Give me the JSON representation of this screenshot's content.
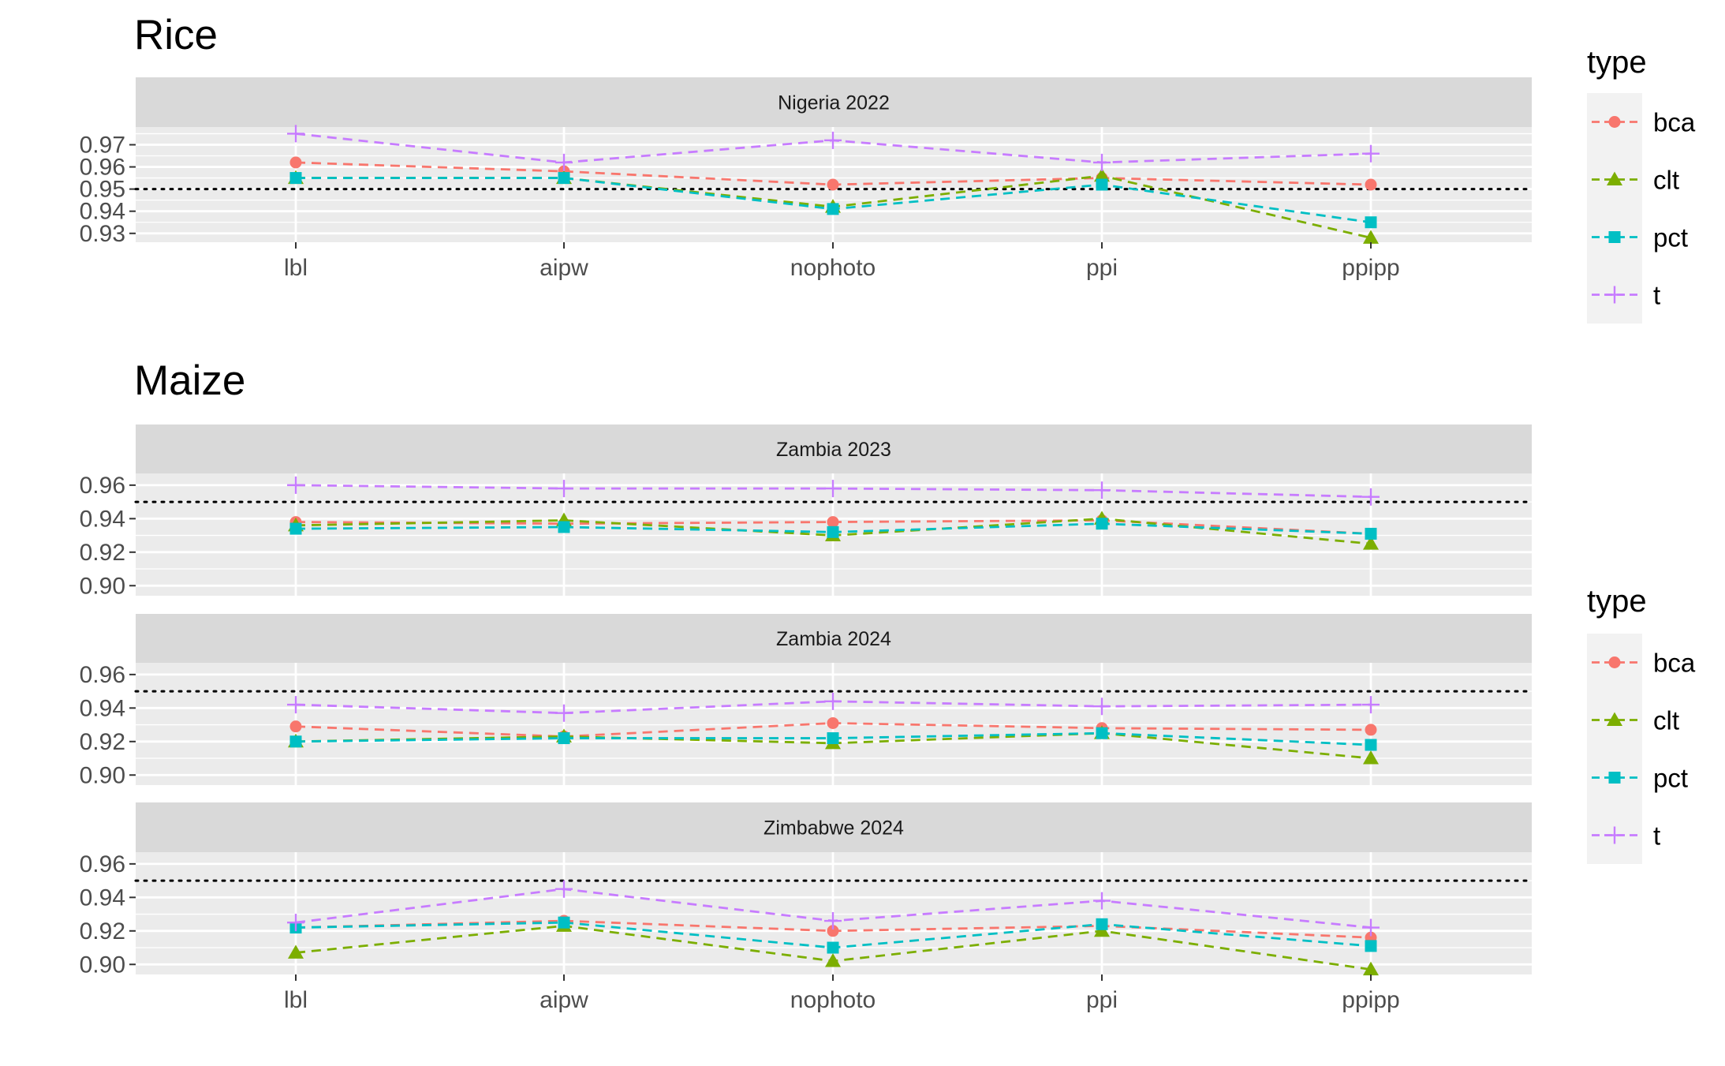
{
  "chart_data": [
    {
      "type": "line",
      "title": "Rice",
      "legend": {
        "title": "type",
        "placement": "right",
        "entries": [
          "bca",
          "clt",
          "pct",
          "t"
        ]
      },
      "facets": [
        {
          "label": "Nigeria 2022",
          "x": [
            "lbl",
            "aipw",
            "nophoto",
            "ppi",
            "ppipp"
          ],
          "ylim": [
            0.926,
            0.978
          ],
          "yticks": [
            "0.97",
            "0.96",
            "0.95",
            "0.94",
            "0.93"
          ],
          "yticks_values": [
            0.97,
            0.96,
            0.95,
            0.94,
            0.93
          ],
          "reference_line": 0.95,
          "series": [
            {
              "name": "bca",
              "values": [
                0.962,
                0.958,
                0.952,
                0.955,
                0.952
              ]
            },
            {
              "name": "clt",
              "values": [
                0.955,
                0.955,
                0.942,
                0.956,
                0.928
              ]
            },
            {
              "name": "pct",
              "values": [
                0.955,
                0.955,
                0.941,
                0.952,
                0.935
              ]
            },
            {
              "name": "t",
              "values": [
                0.975,
                0.962,
                0.972,
                0.962,
                0.966
              ]
            }
          ]
        }
      ]
    },
    {
      "type": "line",
      "title": "Maize",
      "legend": {
        "title": "type",
        "placement": "right",
        "entries": [
          "bca",
          "clt",
          "pct",
          "t"
        ]
      },
      "facets": [
        {
          "label": "Zambia 2023",
          "x": [
            "lbl",
            "aipw",
            "nophoto",
            "ppi",
            "ppipp"
          ],
          "ylim": [
            0.894,
            0.967
          ],
          "yticks": [
            "0.96",
            "0.94",
            "0.92",
            "0.90"
          ],
          "yticks_values": [
            0.96,
            0.94,
            0.92,
            0.9
          ],
          "reference_line": 0.95,
          "series": [
            {
              "name": "bca",
              "values": [
                0.938,
                0.937,
                0.938,
                0.939,
                0.931
              ]
            },
            {
              "name": "clt",
              "values": [
                0.936,
                0.939,
                0.93,
                0.94,
                0.925
              ]
            },
            {
              "name": "pct",
              "values": [
                0.934,
                0.935,
                0.932,
                0.937,
                0.931
              ]
            },
            {
              "name": "t",
              "values": [
                0.96,
                0.958,
                0.958,
                0.957,
                0.953
              ]
            }
          ]
        },
        {
          "label": "Zambia 2024",
          "x": [
            "lbl",
            "aipw",
            "nophoto",
            "ppi",
            "ppipp"
          ],
          "ylim": [
            0.894,
            0.967
          ],
          "yticks": [
            "0.96",
            "0.94",
            "0.92",
            "0.90"
          ],
          "yticks_values": [
            0.96,
            0.94,
            0.92,
            0.9
          ],
          "reference_line": 0.95,
          "series": [
            {
              "name": "bca",
              "values": [
                0.929,
                0.923,
                0.931,
                0.928,
                0.927
              ]
            },
            {
              "name": "clt",
              "values": [
                0.92,
                0.923,
                0.919,
                0.925,
                0.91
              ]
            },
            {
              "name": "pct",
              "values": [
                0.92,
                0.922,
                0.922,
                0.925,
                0.918
              ]
            },
            {
              "name": "t",
              "values": [
                0.942,
                0.937,
                0.944,
                0.941,
                0.942
              ]
            }
          ]
        },
        {
          "label": "Zimbabwe 2024",
          "x": [
            "lbl",
            "aipw",
            "nophoto",
            "ppi",
            "ppipp"
          ],
          "ylim": [
            0.894,
            0.967
          ],
          "yticks": [
            "0.96",
            "0.94",
            "0.92",
            "0.90"
          ],
          "yticks_values": [
            0.96,
            0.94,
            0.92,
            0.9
          ],
          "reference_line": 0.95,
          "series": [
            {
              "name": "bca",
              "values": [
                0.922,
                0.926,
                0.92,
                0.923,
                0.916
              ]
            },
            {
              "name": "clt",
              "values": [
                0.907,
                0.923,
                0.902,
                0.92,
                0.897
              ]
            },
            {
              "name": "pct",
              "values": [
                0.922,
                0.925,
                0.91,
                0.924,
                0.911
              ]
            },
            {
              "name": "t",
              "values": [
                0.925,
                0.945,
                0.926,
                0.938,
                0.922
              ]
            }
          ]
        }
      ]
    }
  ],
  "colors": {
    "bca": "#F8766D",
    "clt": "#7CAE00",
    "pct": "#00BFC4",
    "t": "#C77CFF",
    "panel_bg": "#EBEBEB",
    "strip_bg": "#D9D9D9",
    "grid": "#FFFFFF",
    "tick_text": "#4D4D4D"
  },
  "markers": {
    "bca": "circle",
    "clt": "triangle",
    "pct": "square",
    "t": "plus"
  }
}
